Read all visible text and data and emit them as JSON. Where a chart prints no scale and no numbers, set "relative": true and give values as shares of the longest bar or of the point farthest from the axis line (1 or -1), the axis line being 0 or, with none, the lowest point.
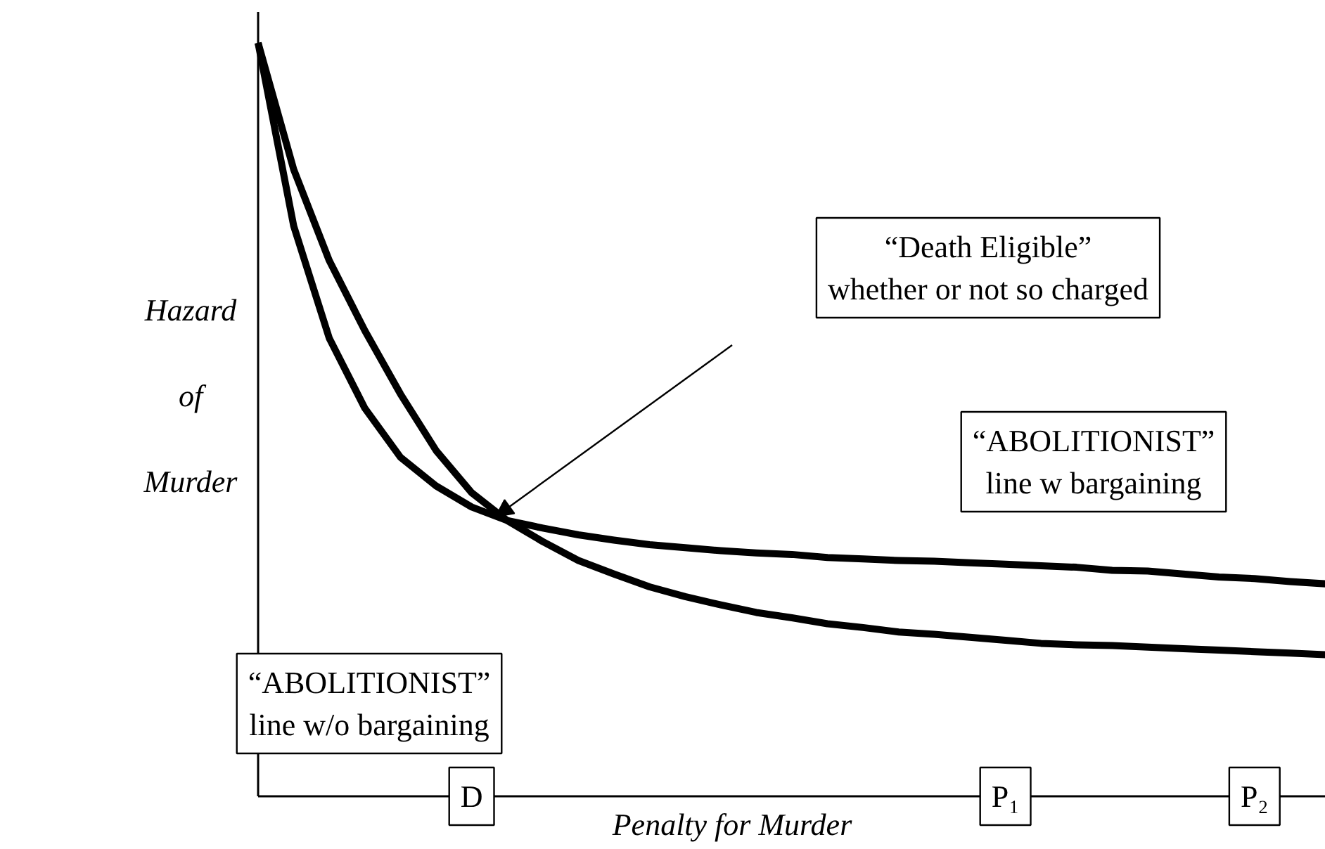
{
  "chart_data": {
    "type": "line",
    "relative": true,
    "xlabel": "Penalty for Murder",
    "ylabel": "Hazard of Murder",
    "categories": [
      null,
      null,
      null,
      null,
      null,
      null,
      "D",
      null,
      null,
      null,
      null,
      null,
      null,
      null,
      null,
      null,
      null,
      null,
      null,
      null,
      null,
      "P₁",
      null,
      null,
      null,
      null,
      null,
      null,
      "P₂",
      null,
      null
    ],
    "series": [
      {
        "name": "“ABOLITIONIST”\nline w/o bargaining",
        "color": "#000000",
        "values": [
          1.0,
          0.832,
          0.711,
          0.618,
          0.534,
          0.459,
          0.403,
          0.366,
          0.338,
          0.313,
          0.295,
          0.278,
          0.265,
          0.254,
          0.244,
          0.237,
          0.229,
          0.224,
          0.218,
          0.215,
          0.211,
          0.207,
          0.203,
          0.201,
          0.2,
          0.198,
          0.196,
          0.194,
          0.192,
          0.19,
          0.188
        ]
      },
      {
        "name": "“ABOLITIONIST”\nline w bargaining",
        "color": "#000000",
        "values": [
          1.0,
          0.757,
          0.608,
          0.515,
          0.45,
          0.412,
          0.384,
          0.366,
          0.356,
          0.347,
          0.34,
          0.334,
          0.33,
          0.326,
          0.323,
          0.321,
          0.317,
          0.315,
          0.313,
          0.312,
          0.31,
          0.308,
          0.306,
          0.304,
          0.3,
          0.299,
          0.295,
          0.291,
          0.289,
          0.285,
          0.282
        ]
      }
    ],
    "annotations": [
      "“Death Eligible”\nwhether or not so charged"
    ],
    "grid": false,
    "legend": false,
    "tick_labels": "x",
    "marker": "none",
    "line_style": "solid"
  }
}
